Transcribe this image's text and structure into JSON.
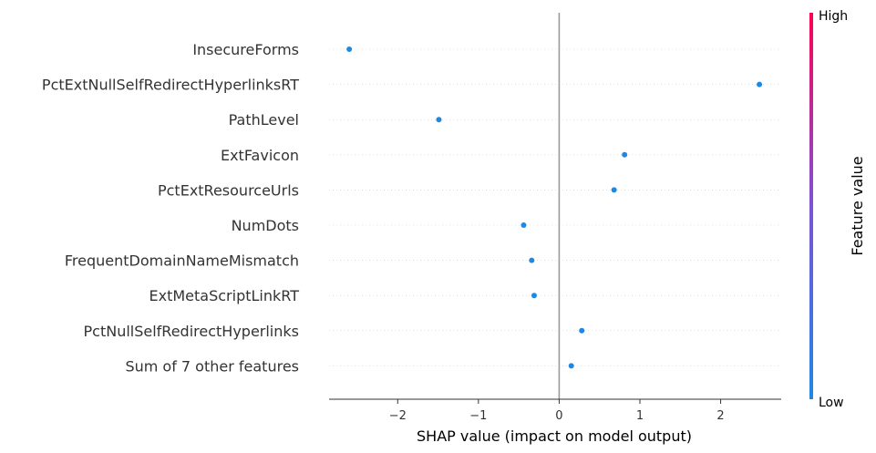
{
  "chart_data": {
    "type": "scatter",
    "title": "",
    "xlabel": "SHAP value (impact on model output)",
    "ylabel": "",
    "xlim": [
      -2.85,
      2.75
    ],
    "xticks": [
      -2,
      -1,
      0,
      1,
      2
    ],
    "xtick_labels": [
      "−2",
      "−1",
      "0",
      "1",
      "2"
    ],
    "features": [
      "InsecureForms",
      "PctExtNullSelfRedirectHyperlinksRT",
      "PathLevel",
      "ExtFavicon",
      "PctExtResourceUrls",
      "NumDots",
      "FrequentDomainNameMismatch",
      "ExtMetaScriptLinkRT",
      "PctNullSelfRedirectHyperlinks",
      "Sum of 7 other features"
    ],
    "values": [
      -2.6,
      2.48,
      -1.49,
      0.81,
      0.68,
      -0.44,
      -0.34,
      -0.31,
      0.28,
      0.15
    ],
    "point_color": "#1E88E5",
    "zero_line_color": "#999999",
    "colorbar": {
      "title": "Feature value",
      "high_label": "High",
      "low_label": "Low",
      "colors": [
        "#1E88E5",
        "#7C52D8",
        "#FF0052"
      ]
    }
  }
}
